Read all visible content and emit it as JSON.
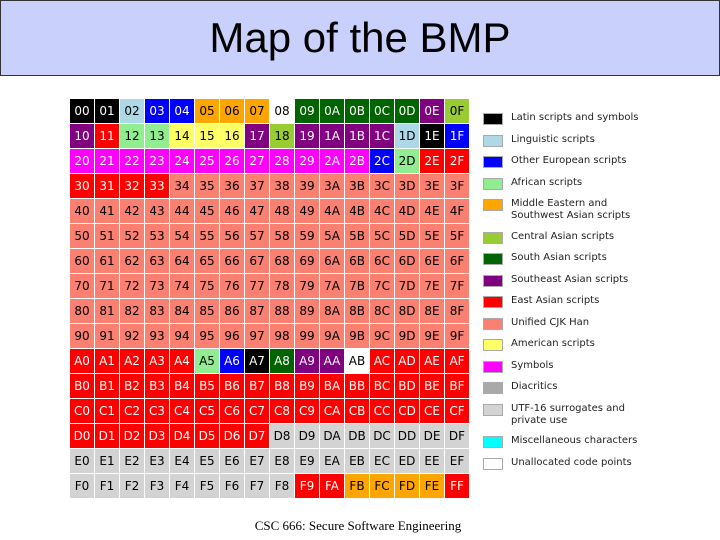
{
  "title": "Map of the BMP",
  "footer": "CSC 666: Secure Software Engineering",
  "grid": {
    "rows": [
      [
        "00",
        "01",
        "02",
        "03",
        "04",
        "05",
        "06",
        "07",
        "08",
        "09",
        "0A",
        "0B",
        "0C",
        "0D",
        "0E",
        "0F"
      ],
      [
        "10",
        "11",
        "12",
        "13",
        "14",
        "15",
        "16",
        "17",
        "18",
        "19",
        "1A",
        "1B",
        "1C",
        "1D",
        "1E",
        "1F"
      ],
      [
        "20",
        "21",
        "22",
        "23",
        "24",
        "25",
        "26",
        "27",
        "28",
        "29",
        "2A",
        "2B",
        "2C",
        "2D",
        "2E",
        "2F"
      ],
      [
        "30",
        "31",
        "32",
        "33",
        "34",
        "35",
        "36",
        "37",
        "38",
        "39",
        "3A",
        "3B",
        "3C",
        "3D",
        "3E",
        "3F"
      ],
      [
        "40",
        "41",
        "42",
        "43",
        "44",
        "45",
        "46",
        "47",
        "48",
        "49",
        "4A",
        "4B",
        "4C",
        "4D",
        "4E",
        "4F"
      ],
      [
        "50",
        "51",
        "52",
        "53",
        "54",
        "55",
        "56",
        "57",
        "58",
        "59",
        "5A",
        "5B",
        "5C",
        "5D",
        "5E",
        "5F"
      ],
      [
        "60",
        "61",
        "62",
        "63",
        "64",
        "65",
        "66",
        "67",
        "68",
        "69",
        "6A",
        "6B",
        "6C",
        "6D",
        "6E",
        "6F"
      ],
      [
        "70",
        "71",
        "72",
        "73",
        "74",
        "75",
        "76",
        "77",
        "78",
        "79",
        "7A",
        "7B",
        "7C",
        "7D",
        "7E",
        "7F"
      ],
      [
        "80",
        "81",
        "82",
        "83",
        "84",
        "85",
        "86",
        "87",
        "88",
        "89",
        "8A",
        "8B",
        "8C",
        "8D",
        "8E",
        "8F"
      ],
      [
        "90",
        "91",
        "92",
        "93",
        "94",
        "95",
        "96",
        "97",
        "98",
        "99",
        "9A",
        "9B",
        "9C",
        "9D",
        "9E",
        "9F"
      ],
      [
        "A0",
        "A1",
        "A2",
        "A3",
        "A4",
        "A5",
        "A6",
        "A7",
        "A8",
        "A9",
        "AA",
        "AB",
        "AC",
        "AD",
        "AE",
        "AF"
      ],
      [
        "B0",
        "B1",
        "B2",
        "B3",
        "B4",
        "B5",
        "B6",
        "B7",
        "B8",
        "B9",
        "BA",
        "BB",
        "BC",
        "BD",
        "BE",
        "BF"
      ],
      [
        "C0",
        "C1",
        "C2",
        "C3",
        "C4",
        "C5",
        "C6",
        "C7",
        "C8",
        "C9",
        "CA",
        "CB",
        "CC",
        "CD",
        "CE",
        "CF"
      ],
      [
        "D0",
        "D1",
        "D2",
        "D3",
        "D4",
        "D5",
        "D6",
        "D7",
        "D8",
        "D9",
        "DA",
        "DB",
        "DC",
        "DD",
        "DE",
        "DF"
      ],
      [
        "E0",
        "E1",
        "E2",
        "E3",
        "E4",
        "E5",
        "E6",
        "E7",
        "E8",
        "E9",
        "EA",
        "EB",
        "EC",
        "ED",
        "EE",
        "EF"
      ],
      [
        "F0",
        "F1",
        "F2",
        "F3",
        "F4",
        "F5",
        "F6",
        "F7",
        "F8",
        "F9",
        "FA",
        "FB",
        "FC",
        "FD",
        "FE",
        "FF"
      ]
    ],
    "colors": [
      [
        "#000000",
        "#000000",
        "#add8e6",
        "#0000ff",
        "#0000ff",
        "#ffa500",
        "#ffa500",
        "#ffa500",
        "#ffffff",
        "#006400",
        "#006400",
        "#006400",
        "#006400",
        "#006400",
        "#800080",
        "#99cc33"
      ],
      [
        "#800080",
        "#ff0000",
        "#90ee90",
        "#90ee90",
        "#ffff66",
        "#ffff66",
        "#ffff66",
        "#800080",
        "#99cc33",
        "#800080",
        "#800080",
        "#800080",
        "#800080",
        "#add8e6",
        "#000000",
        "#0000ff"
      ],
      [
        "#ff00ff",
        "#ff00ff",
        "#ff00ff",
        "#ff00ff",
        "#ff00ff",
        "#ff00ff",
        "#ff00ff",
        "#ff00ff",
        "#ff00ff",
        "#ff00ff",
        "#ff00ff",
        "#ff00ff",
        "#0000ff",
        "#90ee90",
        "#ff0000",
        "#ff0000"
      ],
      [
        "#ff0000",
        "#ff0000",
        "#ff0000",
        "#ff0000",
        "#fa8072",
        "#fa8072",
        "#fa8072",
        "#fa8072",
        "#fa8072",
        "#fa8072",
        "#fa8072",
        "#fa8072",
        "#fa8072",
        "#fa8072",
        "#fa8072",
        "#fa8072"
      ],
      [
        "#fa8072",
        "#fa8072",
        "#fa8072",
        "#fa8072",
        "#fa8072",
        "#fa8072",
        "#fa8072",
        "#fa8072",
        "#fa8072",
        "#fa8072",
        "#fa8072",
        "#fa8072",
        "#fa8072",
        "#fa8072",
        "#fa8072",
        "#fa8072"
      ],
      [
        "#fa8072",
        "#fa8072",
        "#fa8072",
        "#fa8072",
        "#fa8072",
        "#fa8072",
        "#fa8072",
        "#fa8072",
        "#fa8072",
        "#fa8072",
        "#fa8072",
        "#fa8072",
        "#fa8072",
        "#fa8072",
        "#fa8072",
        "#fa8072"
      ],
      [
        "#fa8072",
        "#fa8072",
        "#fa8072",
        "#fa8072",
        "#fa8072",
        "#fa8072",
        "#fa8072",
        "#fa8072",
        "#fa8072",
        "#fa8072",
        "#fa8072",
        "#fa8072",
        "#fa8072",
        "#fa8072",
        "#fa8072",
        "#fa8072"
      ],
      [
        "#fa8072",
        "#fa8072",
        "#fa8072",
        "#fa8072",
        "#fa8072",
        "#fa8072",
        "#fa8072",
        "#fa8072",
        "#fa8072",
        "#fa8072",
        "#fa8072",
        "#fa8072",
        "#fa8072",
        "#fa8072",
        "#fa8072",
        "#fa8072"
      ],
      [
        "#fa8072",
        "#fa8072",
        "#fa8072",
        "#fa8072",
        "#fa8072",
        "#fa8072",
        "#fa8072",
        "#fa8072",
        "#fa8072",
        "#fa8072",
        "#fa8072",
        "#fa8072",
        "#fa8072",
        "#fa8072",
        "#fa8072",
        "#fa8072"
      ],
      [
        "#fa8072",
        "#fa8072",
        "#fa8072",
        "#fa8072",
        "#fa8072",
        "#fa8072",
        "#fa8072",
        "#fa8072",
        "#fa8072",
        "#fa8072",
        "#fa8072",
        "#fa8072",
        "#fa8072",
        "#fa8072",
        "#fa8072",
        "#fa8072"
      ],
      [
        "#ff0000",
        "#ff0000",
        "#ff0000",
        "#ff0000",
        "#ff0000",
        "#90ee90",
        "#0000ff",
        "#000000",
        "#006400",
        "#800080",
        "#800080",
        "#ffffff",
        "#ff0000",
        "#ff0000",
        "#ff0000",
        "#ff0000"
      ],
      [
        "#ff0000",
        "#ff0000",
        "#ff0000",
        "#ff0000",
        "#ff0000",
        "#ff0000",
        "#ff0000",
        "#ff0000",
        "#ff0000",
        "#ff0000",
        "#ff0000",
        "#ff0000",
        "#ff0000",
        "#ff0000",
        "#ff0000",
        "#ff0000"
      ],
      [
        "#ff0000",
        "#ff0000",
        "#ff0000",
        "#ff0000",
        "#ff0000",
        "#ff0000",
        "#ff0000",
        "#ff0000",
        "#ff0000",
        "#ff0000",
        "#ff0000",
        "#ff0000",
        "#ff0000",
        "#ff0000",
        "#ff0000",
        "#ff0000"
      ],
      [
        "#ff0000",
        "#ff0000",
        "#ff0000",
        "#ff0000",
        "#ff0000",
        "#ff0000",
        "#ff0000",
        "#ff0000",
        "#d3d3d3",
        "#d3d3d3",
        "#d3d3d3",
        "#d3d3d3",
        "#d3d3d3",
        "#d3d3d3",
        "#d3d3d3",
        "#d3d3d3"
      ],
      [
        "#d3d3d3",
        "#d3d3d3",
        "#d3d3d3",
        "#d3d3d3",
        "#d3d3d3",
        "#d3d3d3",
        "#d3d3d3",
        "#d3d3d3",
        "#d3d3d3",
        "#d3d3d3",
        "#d3d3d3",
        "#d3d3d3",
        "#d3d3d3",
        "#d3d3d3",
        "#d3d3d3",
        "#d3d3d3"
      ],
      [
        "#d3d3d3",
        "#d3d3d3",
        "#d3d3d3",
        "#d3d3d3",
        "#d3d3d3",
        "#d3d3d3",
        "#d3d3d3",
        "#d3d3d3",
        "#d3d3d3",
        "#ff0000",
        "#ff0000",
        "#ffa500",
        "#ffa500",
        "#ffa500",
        "#ffa500",
        "#ff0000"
      ]
    ]
  },
  "legend": [
    {
      "label": "Latin scripts and symbols",
      "color": "#000000"
    },
    {
      "label": "Linguistic scripts",
      "color": "#add8e6"
    },
    {
      "label": "Other European scripts",
      "color": "#0000ff"
    },
    {
      "label": "African scripts",
      "color": "#90ee90"
    },
    {
      "label": "Middle Eastern and Southwest Asian scripts",
      "color": "#ffa500"
    },
    {
      "label": "Central Asian scripts",
      "color": "#99cc33"
    },
    {
      "label": "South Asian scripts",
      "color": "#006400"
    },
    {
      "label": "Southeast Asian scripts",
      "color": "#800080"
    },
    {
      "label": "East Asian scripts",
      "color": "#ff0000"
    },
    {
      "label": "Unified CJK Han",
      "color": "#fa8072"
    },
    {
      "label": "American scripts",
      "color": "#ffff66"
    },
    {
      "label": "Symbols",
      "color": "#ff00ff"
    },
    {
      "label": "Diacritics",
      "color": "#a9a9a9"
    },
    {
      "label": "UTF-16 surrogates and private use",
      "color": "#d3d3d3"
    },
    {
      "label": "Miscellaneous characters",
      "color": "#00ffff"
    },
    {
      "label": "Unallocated code points",
      "color": "#ffffff"
    }
  ]
}
